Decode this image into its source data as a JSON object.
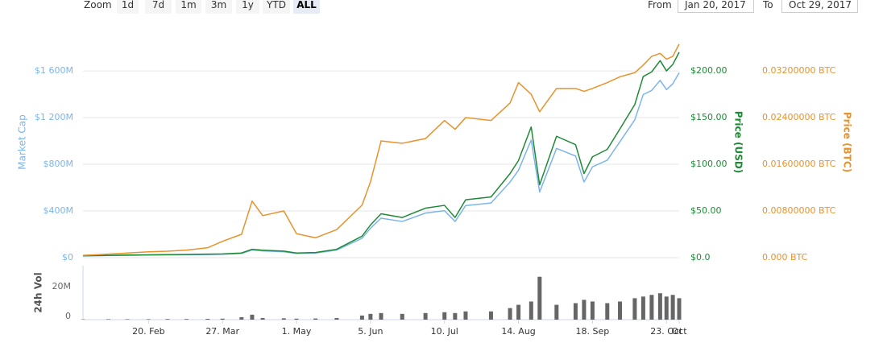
{
  "toolbar": {
    "zoom_label": "Zoom",
    "buttons": [
      {
        "label": "1d"
      },
      {
        "label": "7d"
      },
      {
        "label": "1m"
      },
      {
        "label": "3m"
      },
      {
        "label": "1y"
      },
      {
        "label": "YTD"
      },
      {
        "label": "ALL",
        "selected": true
      }
    ],
    "from_label": "From",
    "from_value": "Jan 20, 2017",
    "to_label": "To",
    "to_value": "Oct 29, 2017"
  },
  "chart_data": [
    {
      "type": "line",
      "x": [
        "2017-01-20",
        "2017-02-01",
        "2017-02-10",
        "2017-02-20",
        "2017-03-01",
        "2017-03-10",
        "2017-03-20",
        "2017-03-27",
        "2017-04-05",
        "2017-04-10",
        "2017-04-15",
        "2017-04-25",
        "2017-05-01",
        "2017-05-10",
        "2017-05-20",
        "2017-06-01",
        "2017-06-05",
        "2017-06-10",
        "2017-06-20",
        "2017-07-01",
        "2017-07-10",
        "2017-07-15",
        "2017-07-20",
        "2017-08-01",
        "2017-08-10",
        "2017-08-14",
        "2017-08-20",
        "2017-08-24",
        "2017-09-01",
        "2017-09-10",
        "2017-09-14",
        "2017-09-18",
        "2017-09-25",
        "2017-10-01",
        "2017-10-08",
        "2017-10-12",
        "2017-10-16",
        "2017-10-20",
        "2017-10-23",
        "2017-10-26",
        "2017-10-29"
      ],
      "xlim": [
        "2017-01-20",
        "2017-10-29"
      ],
      "series": [
        {
          "name": "Market Cap",
          "color": "#7cb5ec",
          "axis": "y",
          "values": [
            14400000,
            18000000,
            20000000,
            22000000,
            23000000,
            25000000,
            27000000,
            29000000,
            36000000,
            65000000,
            58000000,
            50000000,
            36000000,
            40000000,
            65000000,
            166000000,
            252000000,
            338000000,
            310000000,
            382000000,
            403000000,
            310000000,
            446000000,
            468000000,
            648000000,
            749000000,
            1008000000,
            562000000,
            936000000,
            871000000,
            648000000,
            778000000,
            835000000,
            994000000,
            1181000000,
            1397000000,
            1433000000,
            1519000000,
            1440000000,
            1490000000,
            1584000000
          ]
        },
        {
          "name": "Price (USD)",
          "color": "#1e8a36",
          "axis": "y2",
          "values": [
            2,
            2.5,
            2.8,
            3,
            3.2,
            3.5,
            3.8,
            4,
            5,
            9,
            8,
            7,
            5,
            5.5,
            9,
            23,
            35,
            47,
            43,
            53,
            56,
            43,
            62,
            65,
            90,
            104,
            140,
            78,
            130,
            121,
            90,
            108,
            116,
            138,
            164,
            194,
            199,
            211,
            200,
            207,
            220
          ]
        },
        {
          "name": "Price (BTC)",
          "color": "#e8922c",
          "axis": "y3",
          "values": [
            0.0004,
            0.0006,
            0.0008,
            0.001,
            0.0011,
            0.0013,
            0.0017,
            0.0028,
            0.004,
            0.0097,
            0.0072,
            0.008,
            0.0041,
            0.0034,
            0.0048,
            0.009,
            0.013,
            0.02,
            0.0196,
            0.0204,
            0.0235,
            0.022,
            0.024,
            0.0235,
            0.0265,
            0.03,
            0.028,
            0.025,
            0.029,
            0.029,
            0.0285,
            0.029,
            0.03,
            0.031,
            0.0317,
            0.033,
            0.0345,
            0.035,
            0.034,
            0.0345,
            0.0366
          ]
        }
      ],
      "ylim": [
        0,
        1980000000
      ],
      "yticks": [
        {
          "value": 0,
          "label": "$0"
        },
        {
          "value": 400000000,
          "label": "$400M"
        },
        {
          "value": 800000000,
          "label": "$800M"
        },
        {
          "value": 1200000000,
          "label": "$1 200M"
        },
        {
          "value": 1600000000,
          "label": "$1 600M"
        }
      ],
      "y2lim": [
        0,
        247.5
      ],
      "y2ticks": [
        {
          "value": 0,
          "label": "$0.0"
        },
        {
          "value": 50,
          "label": "$50.00"
        },
        {
          "value": 100,
          "label": "$100.00"
        },
        {
          "value": 150,
          "label": "$150.00"
        },
        {
          "value": 200,
          "label": "$200.00"
        }
      ],
      "y3lim": [
        0,
        0.0396
      ],
      "y3ticks": [
        {
          "value": 0,
          "label": "0.000 BTC"
        },
        {
          "value": 0.008,
          "label": "0.00800000 BTC"
        },
        {
          "value": 0.016,
          "label": "0.01600000 BTC"
        },
        {
          "value": 0.024,
          "label": "0.02400000 BTC"
        },
        {
          "value": 0.032,
          "label": "0.03200000 BTC"
        }
      ],
      "grid": true
    },
    {
      "type": "bar",
      "y_label": "24h Vol",
      "color": "#666666",
      "x": [
        "2017-01-20",
        "2017-02-01",
        "2017-02-10",
        "2017-02-20",
        "2017-03-01",
        "2017-03-10",
        "2017-03-20",
        "2017-03-27",
        "2017-04-05",
        "2017-04-10",
        "2017-04-15",
        "2017-04-25",
        "2017-05-01",
        "2017-05-10",
        "2017-05-20",
        "2017-06-01",
        "2017-06-05",
        "2017-06-10",
        "2017-06-20",
        "2017-07-01",
        "2017-07-10",
        "2017-07-15",
        "2017-07-20",
        "2017-08-01",
        "2017-08-10",
        "2017-08-14",
        "2017-08-20",
        "2017-08-24",
        "2017-09-01",
        "2017-09-10",
        "2017-09-14",
        "2017-09-18",
        "2017-09-25",
        "2017-10-01",
        "2017-10-08",
        "2017-10-12",
        "2017-10-16",
        "2017-10-20",
        "2017-10-23",
        "2017-10-26",
        "2017-10-29"
      ],
      "values": [
        200000,
        300000,
        300000,
        300000,
        400000,
        400000,
        500000,
        600000,
        1500000,
        3000000,
        1000000,
        800000,
        600000,
        700000,
        1000000,
        2500000,
        3500000,
        4000000,
        3500000,
        4000000,
        4500000,
        4000000,
        5000000,
        5000000,
        7000000,
        9000000,
        11000000,
        26000000,
        9000000,
        10000000,
        12000000,
        11000000,
        10000000,
        11000000,
        13000000,
        14000000,
        15000000,
        16000000,
        14000000,
        15000000,
        13000000
      ],
      "xlim": [
        "2017-01-20",
        "2017-10-29"
      ],
      "xticks": [
        {
          "value": "2017-02-20",
          "label": "20. Feb"
        },
        {
          "value": "2017-03-27",
          "label": "27. Mar"
        },
        {
          "value": "2017-05-01",
          "label": "1. May"
        },
        {
          "value": "2017-06-05",
          "label": "5. Jun"
        },
        {
          "value": "2017-07-10",
          "label": "10. Jul"
        },
        {
          "value": "2017-08-14",
          "label": "14. Aug"
        },
        {
          "value": "2017-09-18",
          "label": "18. Sep"
        },
        {
          "value": "2017-10-23",
          "label": "23. Oct"
        },
        {
          "value": "2017-10-29",
          "label": "Oct"
        }
      ],
      "ylim": [
        0,
        32700000
      ],
      "yticks": [
        0,
        {
          "value": 20000000,
          "label": "20M"
        }
      ]
    }
  ]
}
